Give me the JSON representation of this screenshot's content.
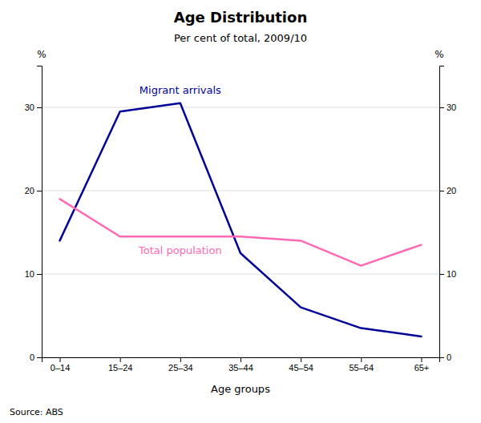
{
  "chart_data": {
    "type": "line",
    "title": "Age Distribution",
    "subtitle": "Per cent of total, 2009/10",
    "xlabel": "Age groups",
    "ylabel": "%",
    "y2label": "%",
    "source": "Source: ABS",
    "categories": [
      "0–14",
      "15–24",
      "25–34",
      "35–44",
      "45–54",
      "55–64",
      "65+"
    ],
    "series": [
      {
        "name": "Migrant arrivals",
        "color": "#000099",
        "values": [
          14.0,
          29.5,
          30.5,
          12.5,
          6.0,
          3.5,
          2.5
        ]
      },
      {
        "name": "Total population",
        "color": "#FF69B4",
        "values": [
          19.0,
          14.5,
          14.5,
          14.5,
          14.0,
          11.0,
          13.5
        ]
      }
    ],
    "ylim": [
      0,
      35
    ],
    "yticks": [
      0,
      10,
      20,
      30
    ],
    "y2lim": [
      0,
      35
    ],
    "y2ticks": [
      0,
      10,
      20,
      30
    ],
    "grid": true
  }
}
